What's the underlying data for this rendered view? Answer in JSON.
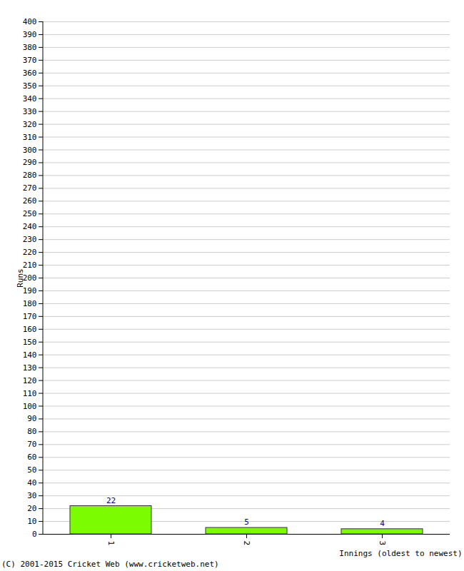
{
  "chart_data": {
    "type": "bar",
    "x_label": "Innings (oldest to newest)",
    "y_label": "Runs",
    "caption": "(C) 2001-2015 Cricket Web (www.cricketweb.net)",
    "categories": [
      "1",
      "2",
      "3"
    ],
    "values": [
      22,
      5,
      4
    ],
    "color": "#7cfc00",
    "ylim": [
      0,
      400
    ],
    "yticks": [
      0,
      10,
      20,
      30,
      40,
      50,
      60,
      70,
      80,
      90,
      100,
      110,
      120,
      130,
      140,
      150,
      160,
      170,
      180,
      190,
      200,
      210,
      220,
      230,
      240,
      250,
      260,
      270,
      280,
      290,
      300,
      310,
      320,
      330,
      340,
      350,
      360,
      370,
      380,
      390,
      400
    ],
    "grid": true,
    "data_labels": true
  }
}
